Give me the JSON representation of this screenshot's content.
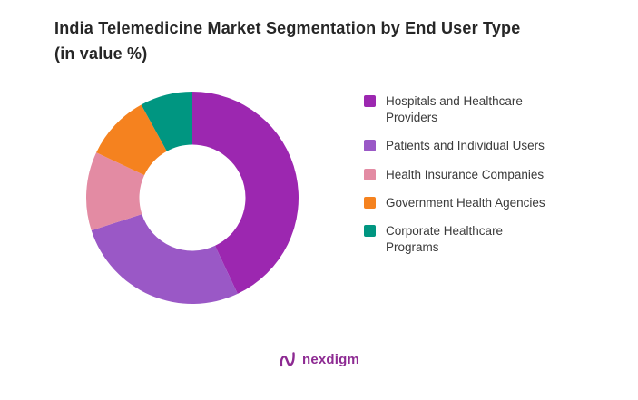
{
  "title": {
    "line1": "India Telemedicine Market Segmentation by End User Type",
    "line2": "(in value %)"
  },
  "chart_data": {
    "type": "pie",
    "subtype": "donut",
    "title": "India Telemedicine Market Segmentation by End User Type (in value %)",
    "categories": [
      "Hospitals and Healthcare Providers",
      "Patients and Individual Users",
      "Health Insurance Companies",
      "Government Health Agencies",
      "Corporate Healthcare Programs"
    ],
    "values": [
      43,
      27,
      12,
      10,
      8
    ],
    "unit": "%",
    "colors": [
      "#9c27b0",
      "#9a58c6",
      "#e38ba3",
      "#f5821f",
      "#009681"
    ],
    "legend_position": "right",
    "start_angle_deg": 0,
    "direction": "clockwise",
    "hole_ratio": 0.5,
    "hole_color": "#ffffff"
  },
  "footer": {
    "brand": "nexdigm",
    "brand_color": "#8d2a92",
    "logo_icon": "nexdigm-wave-icon"
  }
}
